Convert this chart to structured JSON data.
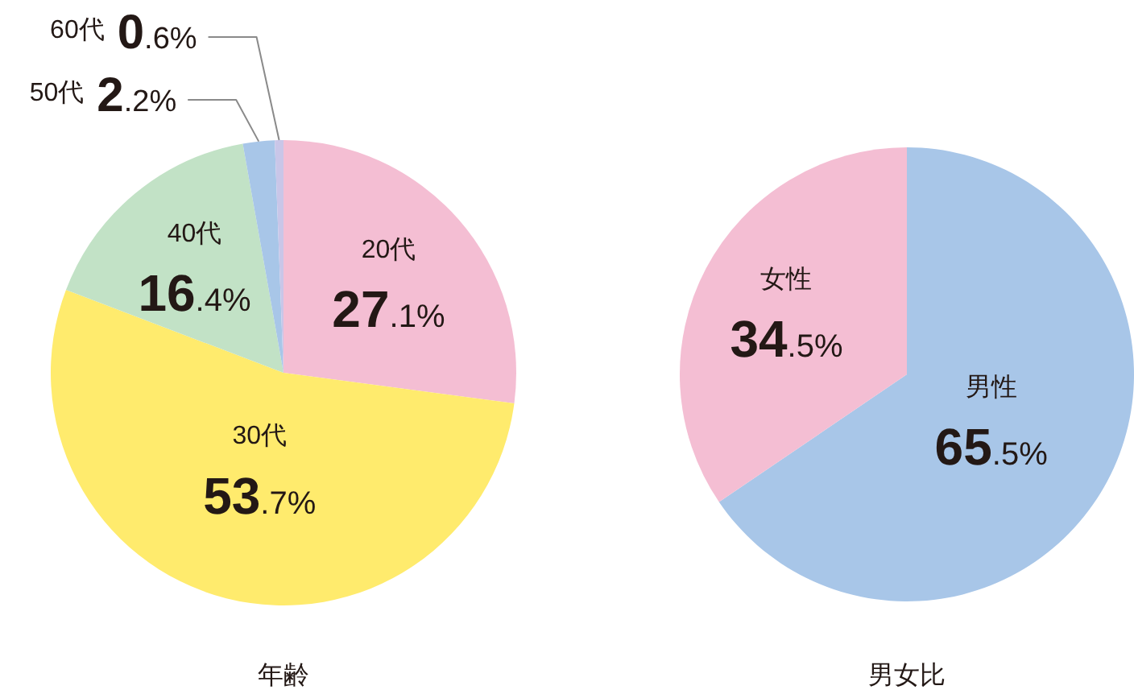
{
  "chart_data": [
    {
      "type": "pie",
      "title": "年齢",
      "categories": [
        "20代",
        "30代",
        "40代",
        "50代",
        "60代"
      ],
      "values": [
        27.1,
        53.7,
        16.4,
        2.2,
        0.6
      ],
      "value_labels": [
        "27.1%",
        "53.7%",
        "16.4%",
        "2.2%",
        "0.6%"
      ],
      "colors": [
        "#f4bed3",
        "#ffeb6d",
        "#c2e2c6",
        "#a8c6e8",
        "#c9c6e8"
      ]
    },
    {
      "type": "pie",
      "title": "男女比",
      "categories": [
        "男性",
        "女性"
      ],
      "values": [
        65.5,
        34.5
      ],
      "value_labels": [
        "65.5%",
        "34.5%"
      ],
      "colors": [
        "#a8c6e8",
        "#f4bed3"
      ]
    }
  ]
}
